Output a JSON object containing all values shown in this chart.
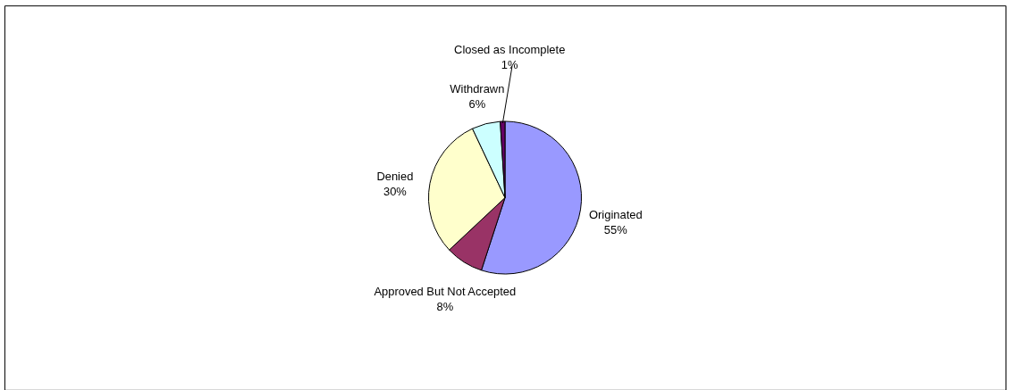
{
  "chart_data": {
    "type": "pie",
    "categories": [
      "Originated",
      "Approved But Not Accepted",
      "Denied",
      "Withdrawn",
      "Closed as Incomplete"
    ],
    "values": [
      55,
      8,
      30,
      6,
      1
    ],
    "colors": [
      "#9999ff",
      "#993366",
      "#ffffcc",
      "#ccffff",
      "#660066"
    ],
    "value_labels": [
      "55%",
      "8%",
      "30%",
      "6%",
      "1%"
    ],
    "legend": false
  }
}
